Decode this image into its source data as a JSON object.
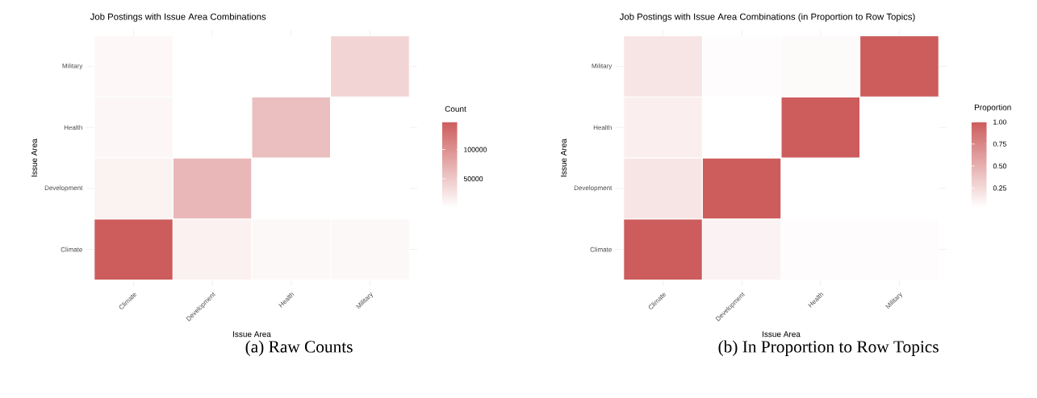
{
  "chart_data": [
    {
      "type": "heatmap",
      "title": "Job Postings with Issue Area Combinations",
      "xlabel": "Issue Area",
      "ylabel": "Issue Area",
      "clabel": "Count",
      "categories": [
        "Climate",
        "Development",
        "Health",
        "Military"
      ],
      "y_categories": [
        "Military",
        "Health",
        "Development",
        "Climate"
      ],
      "cells": [
        [
          8000,
          1000,
          1000,
          39000
        ],
        [
          9000,
          1000,
          58000,
          1000
        ],
        [
          13000,
          65000,
          1000,
          1000
        ],
        [
          147000,
          13500,
          7000,
          7000
        ]
      ],
      "clim": [
        1000,
        147000
      ],
      "cticks": [
        50000,
        100000
      ],
      "grid": true,
      "annotations": [
        "(a) Raw Counts"
      ]
    },
    {
      "type": "heatmap",
      "title": "Job Postings with Issue Area Combinations (in Proportion to Row Topics)",
      "xlabel": "Issue Area",
      "ylabel": "Issue Area",
      "clabel": "Proportion",
      "categories": [
        "Climate",
        "Development",
        "Health",
        "Military"
      ],
      "y_categories": [
        "Military",
        "Health",
        "Development",
        "Climate"
      ],
      "cells": [
        [
          0.19,
          0.05,
          0.06,
          1.0
        ],
        [
          0.13,
          0.03,
          1.0,
          0.03
        ],
        [
          0.19,
          1.0,
          0.03,
          0.03
        ],
        [
          1.0,
          0.1,
          0.05,
          0.05
        ]
      ],
      "clim": [
        0.03,
        1.0
      ],
      "cticks": [
        {
          "value": 0.25,
          "label": "0.25"
        },
        {
          "value": 0.5,
          "label": "0.50"
        },
        {
          "value": 0.75,
          "label": "0.75"
        },
        {
          "value": 1.0,
          "label": "1.00"
        }
      ],
      "grid": true,
      "annotations": [
        "(b) In Proportion to Row Topics"
      ]
    }
  ]
}
